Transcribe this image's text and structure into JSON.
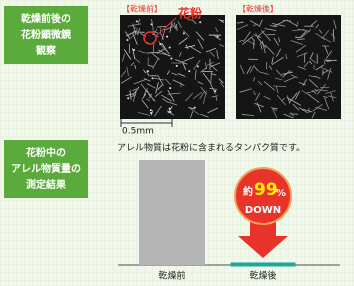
{
  "panels": [
    {
      "label": [
        "乾燥前後の",
        "花粉顕微鏡",
        "観察"
      ]
    },
    {
      "label": [
        "花粉中の",
        "アレル物質量の",
        "測定結果"
      ]
    }
  ],
  "micrographs": {
    "before_label": "【乾燥前】",
    "after_label": "【乾燥後】",
    "pollen_label": "花粉",
    "scale": "0.5mm"
  },
  "chart_data": {
    "type": "bar",
    "subtitle": "アレル物質は花粉に含まれるタンパク質です。",
    "categories": [
      "乾燥前",
      "乾燥後"
    ],
    "values": [
      100,
      1
    ],
    "colors": [
      "#b5b5b5",
      "#1fa89a"
    ],
    "annotation": {
      "prefix": "約",
      "number": "99",
      "unit": "%",
      "word": "DOWN"
    }
  }
}
